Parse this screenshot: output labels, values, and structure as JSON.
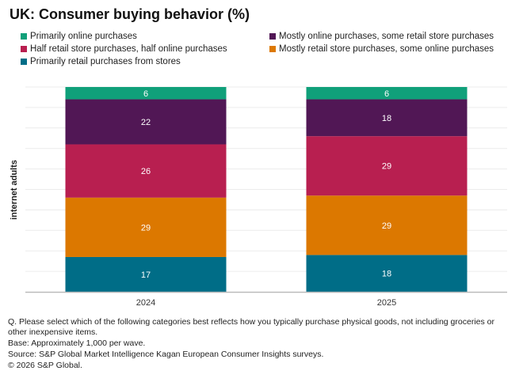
{
  "chart_data": {
    "type": "bar",
    "stacked": true,
    "title": "UK: Consumer buying behavior (%)",
    "ylabel": "internet adults",
    "xlabel": "",
    "categories": [
      "2024",
      "2025"
    ],
    "ylim": [
      0,
      100
    ],
    "grid": true,
    "legend_position": "top",
    "series": [
      {
        "name": "Primarily retail purchases from stores",
        "values": [
          17,
          18
        ],
        "color": "#006d87"
      },
      {
        "name": "Mostly retail store purchases, some online purchases",
        "values": [
          29,
          29
        ],
        "color": "#dc7800"
      },
      {
        "name": "Half retail store purchases, half online purchases",
        "values": [
          26,
          29
        ],
        "color": "#b81f50"
      },
      {
        "name": "Mostly online purchases, some retail store purchases",
        "values": [
          22,
          18
        ],
        "color": "#511755"
      },
      {
        "name": "Primarily online purchases",
        "values": [
          6,
          6
        ],
        "color": "#10a07a"
      }
    ]
  },
  "legend_order": [
    4,
    3,
    2,
    1,
    0
  ],
  "footnotes": [
    "Q. Please select which of the following categories best reflects how you typically purchase physical goods, not including groceries or other inexpensive items.",
    "Base: Approximately 1,000 per wave.",
    "Source: S&P Global Market Intelligence Kagan European Consumer Insights surveys.",
    "© 2026 S&P Global."
  ]
}
